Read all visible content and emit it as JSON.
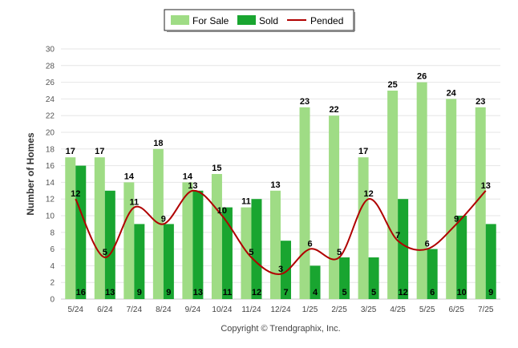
{
  "chart_data": {
    "type": "bar",
    "categories": [
      "5/24",
      "6/24",
      "7/24",
      "8/24",
      "9/24",
      "10/24",
      "11/24",
      "12/24",
      "1/25",
      "2/25",
      "3/25",
      "4/25",
      "5/25",
      "6/25",
      "7/25"
    ],
    "series": [
      {
        "name": "For Sale",
        "type": "bar",
        "color": "#9fdc85",
        "values": [
          17,
          17,
          14,
          18,
          14,
          15,
          11,
          13,
          23,
          22,
          17,
          25,
          26,
          24,
          23
        ]
      },
      {
        "name": "Sold",
        "type": "bar",
        "color": "#19a530",
        "values": [
          16,
          13,
          9,
          9,
          13,
          11,
          12,
          7,
          4,
          5,
          5,
          12,
          6,
          10,
          9
        ]
      },
      {
        "name": "Pended",
        "type": "line",
        "color": "#b00000",
        "values": [
          12,
          5,
          11,
          9,
          13,
          10,
          5,
          3,
          6,
          5,
          12,
          7,
          6,
          9,
          13
        ]
      }
    ],
    "ylabel": "Number of Homes",
    "xlabel": "",
    "ylim": [
      0,
      30
    ],
    "yticks": [
      0,
      2,
      4,
      6,
      8,
      10,
      12,
      14,
      16,
      18,
      20,
      22,
      24,
      26,
      28,
      30
    ],
    "grid": true,
    "legend_position": "top-center"
  },
  "copyright": "Copyright © Trendgraphix, Inc."
}
